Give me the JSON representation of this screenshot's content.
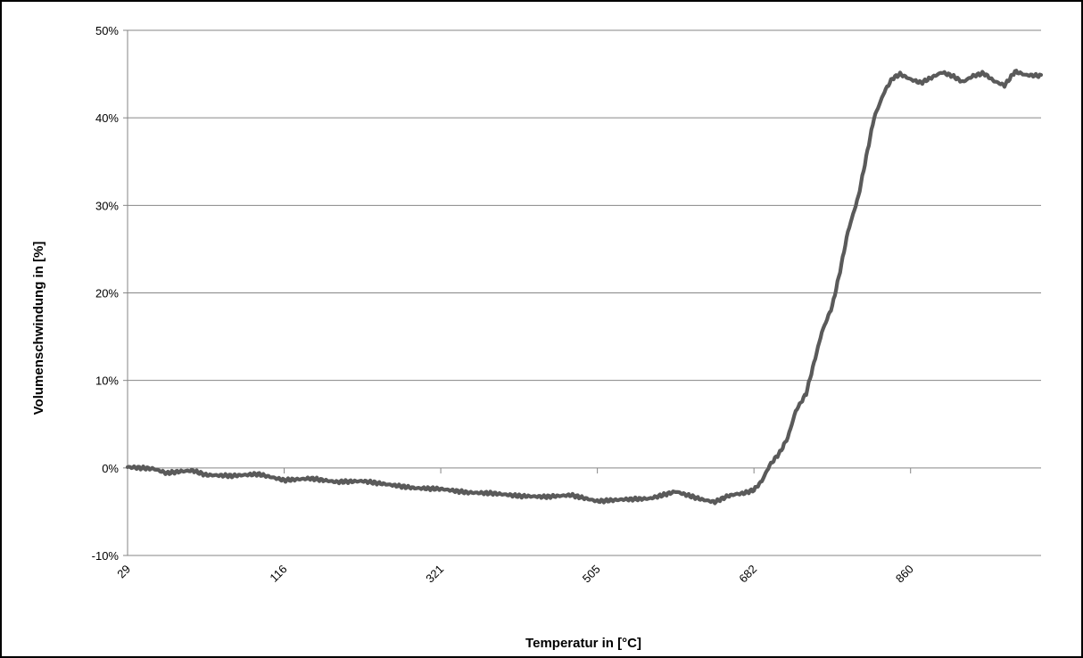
{
  "chart_data": {
    "type": "line",
    "title": "",
    "xlabel": "Temperatur in [°C]",
    "ylabel": "Volumenschwindung in [%]",
    "x_ticks": [
      "29",
      "116",
      "321",
      "505",
      "682",
      "860"
    ],
    "y_ticks": [
      "50%",
      "40%",
      "30%",
      "20%",
      "10%",
      "0%",
      "-10%"
    ],
    "ylim": [
      -10,
      50
    ],
    "grid": true,
    "legend": "none",
    "colors": {
      "line": "#5a5a5a",
      "grid": "#868686",
      "axis": "#868686"
    },
    "series": [
      {
        "x_index": [
          0,
          0.05,
          0.1,
          0.15,
          0.2,
          0.25,
          0.3,
          0.35,
          0.4,
          0.45,
          0.5,
          0.55,
          0.6,
          0.65,
          0.7,
          0.75,
          0.8,
          0.85,
          0.9,
          0.95,
          1.0,
          1.05,
          1.1,
          1.15,
          1.2,
          1.25,
          1.3,
          1.35,
          1.4,
          1.45,
          1.5,
          1.55,
          1.6,
          1.65,
          1.7,
          1.75,
          1.8,
          1.85,
          1.9,
          1.95,
          2.0,
          2.05,
          2.1,
          2.15,
          2.2,
          2.25,
          2.3,
          2.35,
          2.4,
          2.45,
          2.5,
          2.55,
          2.6,
          2.65,
          2.7,
          2.75,
          2.8,
          2.85,
          2.9,
          2.95,
          3.0,
          3.05,
          3.1,
          3.15,
          3.2,
          3.25,
          3.3,
          3.35,
          3.4,
          3.45,
          3.5,
          3.55,
          3.6,
          3.65,
          3.7,
          3.75,
          3.8,
          3.85,
          3.9,
          3.95,
          4.0,
          4.05,
          4.1,
          4.15,
          4.2,
          4.25,
          4.3,
          4.35,
          4.4,
          4.45,
          4.5,
          4.55,
          4.6,
          4.65,
          4.7,
          4.75,
          4.8,
          4.85,
          4.9,
          4.95,
          5.0,
          5.05,
          5.1,
          5.15,
          5.2,
          5.25,
          5.3,
          5.35,
          5.4,
          5.45,
          5.5,
          5.55,
          5.6,
          5.65,
          5.7,
          5.75,
          5.8,
          5.85,
          5.9,
          5.95,
          6.0,
          6.05,
          6.1,
          6.15,
          6.2,
          6.25,
          6.3,
          6.35,
          6.4,
          6.45,
          6.5,
          6.55,
          6.6,
          6.65,
          6.7,
          6.75,
          6.8,
          6.85,
          6.9,
          6.95,
          7.0,
          7.05,
          7.1,
          7.15,
          7.2,
          7.25,
          7.3,
          7.35,
          7.4,
          7.45,
          7.5,
          7.55,
          7.6,
          7.65,
          7.7,
          7.75,
          7.8,
          7.85,
          7.9,
          7.95,
          8.0,
          8.05,
          8.1,
          8.15,
          8.2,
          8.25,
          8.3,
          8.35,
          8.4,
          8.45,
          8.5,
          8.55,
          8.6,
          8.65,
          8.7,
          8.75,
          8.8,
          8.85,
          8.9,
          8.95,
          9.0,
          9.05,
          9.1,
          9.15,
          9.2,
          9.25,
          9.3,
          9.35,
          9.4,
          9.45,
          9.5,
          9.55,
          9.6,
          9.65,
          9.7,
          9.75,
          9.8,
          9.85,
          9.9,
          9.95,
          10.0,
          10.05,
          10.1,
          10.15,
          10.2,
          10.25,
          10.3,
          10.35,
          10.4,
          10.45,
          10.5,
          10.55,
          10.6,
          10.65,
          10.7,
          10.75,
          10.8,
          10.85,
          10.9,
          10.95,
          11.0,
          11.05,
          11.1,
          11.15,
          11.2,
          11.25,
          11.3,
          11.35,
          11.4,
          11.45,
          11.5,
          11.55,
          11.6,
          11.65,
          11.7,
          11.75,
          11.8,
          11.85,
          11.9,
          11.95,
          12.0,
          12.05,
          12.1,
          12.15,
          12.2,
          12.25,
          12.3,
          12.35,
          12.4,
          12.45,
          12.5,
          12.55,
          12.6,
          12.65,
          12.7,
          12.75,
          12.8,
          12.85,
          12.9,
          12.95,
          13.0,
          13.05,
          13.1,
          13.15,
          13.2,
          13.25,
          13.3,
          13.35,
          13.4,
          13.45,
          13.5,
          13.55,
          13.6,
          13.65,
          13.7,
          13.75,
          13.8,
          13.85,
          13.9,
          13.95,
          14.0,
          14.05,
          14.1,
          14.15,
          14.2,
          14.25,
          14.3,
          14.35,
          14.4,
          14.45,
          14.5,
          14.55,
          14.6,
          14.65,
          14.7,
          14.75,
          14.8,
          14.85,
          14.9,
          14.95,
          15.0,
          15.05,
          15.1,
          15.15,
          15.2,
          15.25,
          15.3,
          15.35,
          15.4,
          15.45,
          15.5,
          15.55,
          15.6,
          15.65,
          15.7,
          15.75,
          15.8,
          15.85,
          15.9,
          15.95,
          16.0,
          16.05,
          16.1,
          16.15,
          16.2,
          16.25,
          16.3,
          16.35,
          16.4,
          16.45,
          16.5,
          16.55,
          16.6,
          16.65,
          16.7,
          16.75,
          16.8,
          16.85,
          16.9,
          16.95,
          17.0,
          17.05,
          17.1,
          17.15,
          17.2,
          17.25,
          17.3,
          17.35,
          17.4,
          17.45,
          17.5,
          17.55,
          17.6,
          17.65,
          17.7,
          17.75,
          17.8,
          17.85,
          17.9,
          17.95,
          18.0,
          18.05,
          18.1,
          18.15,
          18.2,
          18.25,
          18.3,
          18.35,
          18.4,
          18.45,
          18.5,
          18.55,
          18.6,
          18.65,
          18.7,
          18.75,
          18.8,
          18.85,
          18.9,
          18.95,
          19.0,
          19.05,
          19.1,
          19.15,
          19.2,
          19.25,
          19.3,
          19.35,
          19.4,
          19.45,
          19.5,
          19.55,
          19.6,
          19.65,
          19.7,
          19.75,
          19.8,
          19.85,
          19.9,
          19.95,
          20.0,
          20.05,
          20.1,
          20.15,
          20.2,
          20.25,
          20.3,
          20.35,
          20.4,
          20.45,
          20.5,
          20.55,
          20.6,
          20.65,
          20.7,
          20.75,
          20.8,
          20.85,
          20.9,
          20.95,
          21.0,
          21.05,
          21.1,
          21.15,
          21.2,
          21.25,
          21.3,
          21.35,
          21.4,
          21.45,
          21.5,
          21.55,
          21.6,
          21.65,
          21.7,
          21.75,
          21.8,
          21.85,
          21.9,
          21.95,
          22.0,
          22.05,
          22.1,
          22.15,
          22.2,
          22.25,
          22.3,
          22.35,
          22.4,
          22.45,
          22.5,
          22.55,
          22.6,
          22.65,
          22.7,
          22.75,
          22.8,
          22.85,
          22.9,
          22.95,
          23.0,
          23.05,
          23.1,
          23.15,
          23.2,
          23.25,
          23.3,
          23.35,
          23.4,
          23.45,
          23.5,
          23.55,
          23.6,
          23.65,
          23.7,
          23.75,
          23.8,
          23.85,
          23.9,
          23.95,
          24.0,
          24.05,
          24.1,
          24.15,
          24.2,
          24.25,
          24.3,
          24.35,
          24.4,
          24.45,
          24.5,
          24.55,
          24.6,
          24.65,
          24.7,
          24.75,
          24.8,
          24.85,
          24.9,
          24.95,
          25.0,
          25.05,
          25.1,
          25.15,
          25.2,
          25.25,
          25.3,
          25.35,
          25.4,
          25.45,
          25.5,
          25.55,
          25.6,
          25.65,
          25.7,
          25.75,
          25.8,
          25.85,
          25.9,
          25.95,
          26.0,
          26.05,
          26.1,
          26.15,
          26.2,
          26.25,
          26.3,
          26.35,
          26.4,
          26.45,
          26.5,
          26.55,
          26.6,
          26.65,
          26.7,
          26.75,
          26.8,
          26.85,
          26.9,
          26.95,
          27.0,
          27.05,
          27.1,
          27.15,
          27.2,
          27.25,
          27.3,
          27.35,
          27.4,
          27.45,
          27.5,
          27.55,
          27.6,
          27.65,
          27.7,
          27.75,
          27.8,
          27.85,
          27.9,
          27.95,
          28.0,
          28.05,
          28.1,
          28.15,
          28.2,
          28.25,
          28.3,
          28.35,
          28.4,
          28.45,
          28.5,
          28.55,
          28.6,
          28.65,
          28.7,
          28.75,
          28.8,
          28.85,
          28.9,
          28.95,
          29.0,
          29.05,
          29.1,
          29.15,
          29.2,
          29.25,
          29.3,
          29.35,
          29.4,
          29.45,
          29.5,
          29.55,
          29.6,
          29.65,
          29.7,
          29.75,
          29.8,
          29.85,
          29.9,
          29.95,
          30.0,
          30.05,
          30.1,
          30.15,
          30.2,
          30.25,
          30.3,
          30.35,
          30.4,
          30.45,
          30.5,
          30.55,
          30.6,
          30.65,
          30.7,
          30.75,
          30.8,
          30.85,
          30.9,
          30.95,
          31.0,
          31.05,
          31.1,
          31.15,
          31.2,
          31.25,
          31.3,
          31.35,
          31.4,
          31.45,
          31.5,
          31.55,
          31.6,
          31.65,
          31.7,
          31.75,
          31.8,
          31.85,
          31.9,
          31.95,
          32.0,
          32.05,
          32.1,
          32.15,
          32.2,
          32.25,
          32.3,
          32.35,
          32.4,
          32.45,
          32.5,
          32.55,
          32.6,
          32.65,
          32.7,
          32.75,
          32.8,
          32.85,
          32.9,
          32.95,
          33.0,
          33.05,
          33.1,
          33.15,
          33.2,
          33.25,
          33.3,
          33.35,
          33.4,
          33.45,
          33.5,
          33.55,
          33.6,
          33.65,
          33.7,
          33.75,
          33.8,
          33.85,
          33.9,
          33.95,
          34.0,
          34.05,
          34.1,
          34.15,
          34.2,
          34.25,
          34.3,
          34.35,
          34.4,
          34.45,
          34.5,
          34.55,
          34.6,
          34.65,
          34.7,
          34.75,
          34.8,
          34.85,
          34.9,
          34.95,
          35.0
        ],
        "note_x": "positions on the category axis; tick labels appear every 5 categories",
        "y_anchor_x": [
          0.0,
          1.0,
          1.5,
          2.0,
          2.5,
          3.0,
          4.0,
          5.0,
          6.0,
          7.0,
          8.0,
          9.0,
          10.0,
          11.0,
          12.0,
          13.0,
          14.0,
          15.0,
          16.0,
          17.0,
          18.0,
          19.0,
          20.0,
          21.0,
          22.0,
          22.5,
          23.0,
          23.3,
          23.6,
          24.0,
          24.3,
          24.6,
          25.0,
          25.3,
          25.6,
          26.0,
          26.3,
          26.6,
          27.0,
          27.3,
          27.6,
          28.0,
          28.3,
          28.6,
          29.0,
          29.3,
          29.6,
          30.0,
          30.4,
          30.8,
          31.2,
          31.6,
          32.0,
          32.4,
          32.8,
          33.2,
          33.6,
          34.0,
          34.4,
          35.0
        ],
        "y_anchor_values": [
          0.1,
          -0.1,
          -0.6,
          -0.4,
          -0.3,
          -0.8,
          -0.9,
          -0.7,
          -1.4,
          -1.2,
          -1.6,
          -1.5,
          -1.9,
          -2.3,
          -2.4,
          -2.8,
          -2.9,
          -3.2,
          -3.3,
          -3.1,
          -3.8,
          -3.6,
          -3.5,
          -2.7,
          -3.6,
          -3.9,
          -3.2,
          -3.0,
          -2.9,
          -2.5,
          -1.5,
          0.3,
          1.8,
          3.5,
          6.5,
          8.5,
          12.0,
          15.5,
          18.5,
          22.5,
          27.0,
          31.0,
          35.5,
          40.0,
          43.0,
          44.5,
          45.0,
          44.4,
          44.0,
          44.6,
          45.2,
          44.8,
          44.1,
          44.8,
          45.1,
          44.2,
          43.7,
          45.3,
          44.9,
          44.8
        ]
      }
    ]
  }
}
